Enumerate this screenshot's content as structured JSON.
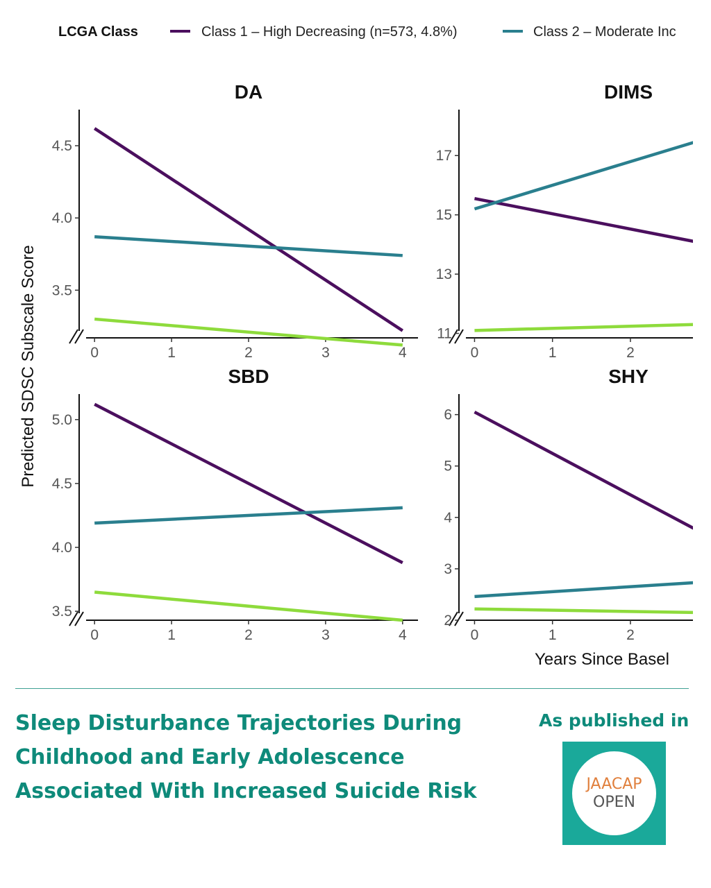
{
  "legend": {
    "title": "LCGA Class",
    "items": [
      {
        "label": "Class 1 – High Decreasing (n=573, 4.8%)",
        "color": "#4b0f5e"
      },
      {
        "label": "Class 2 – Moderate Inc",
        "color": "#2a7f8e"
      }
    ]
  },
  "y_axis_label": "Predicted SDSC Subscale Score",
  "x_axis_label": "Years Since Basel",
  "headline": {
    "line1": "Sleep Disturbance Trajectories During",
    "line2": "Childhood and Early Adolescence",
    "line3": "Associated With Increased Suicide Risk"
  },
  "published_label": "As published in",
  "logo": {
    "top": "JAACAP",
    "bottom": "OPEN",
    "bg": "#1aa99a"
  },
  "chart_data": [
    {
      "type": "line",
      "title": "DA",
      "x_ticks": [
        0,
        1,
        2,
        3,
        4
      ],
      "y_ticks": [
        3.5,
        4.0,
        4.5
      ],
      "xlim": [
        -0.2,
        4.2
      ],
      "ylim": [
        3.17,
        4.75
      ],
      "series": [
        {
          "name": "Class 1 – High Decreasing (n=573, 4.8%)",
          "color": "#4b0f5e",
          "x": [
            0,
            4
          ],
          "y": [
            4.62,
            3.22
          ]
        },
        {
          "name": "Class 2 – Moderate Inc",
          "color": "#2a7f8e",
          "x": [
            0,
            4
          ],
          "y": [
            3.87,
            3.74
          ]
        },
        {
          "color": "#8edb3c",
          "x": [
            0,
            4
          ],
          "y": [
            3.3,
            3.12
          ]
        }
      ]
    },
    {
      "type": "line",
      "title": "DIMS",
      "x_ticks": [
        0,
        1,
        2
      ],
      "y_ticks": [
        11,
        13,
        15,
        17
      ],
      "xlim": [
        -0.2,
        2.82
      ],
      "ylim": [
        10.85,
        18.55
      ],
      "series": [
        {
          "name": "Class 1 – High Decreasing (n=573, 4.8%)",
          "color": "#4b0f5e",
          "x": [
            0,
            2.82
          ],
          "y": [
            15.55,
            14.1
          ]
        },
        {
          "name": "Class 2 – Moderate Inc",
          "color": "#2a7f8e",
          "x": [
            0,
            2.82
          ],
          "y": [
            15.2,
            17.45
          ]
        },
        {
          "color": "#8edb3c",
          "x": [
            0,
            2.82
          ],
          "y": [
            11.1,
            11.3
          ]
        }
      ]
    },
    {
      "type": "line",
      "title": "SBD",
      "x_ticks": [
        0,
        1,
        2,
        3,
        4
      ],
      "y_ticks": [
        3.5,
        4.0,
        4.5,
        5.0
      ],
      "xlim": [
        -0.2,
        4.2
      ],
      "ylim": [
        3.43,
        5.2
      ],
      "series": [
        {
          "name": "Class 1 – High Decreasing (n=573, 4.8%)",
          "color": "#4b0f5e",
          "x": [
            0,
            4
          ],
          "y": [
            5.12,
            3.88
          ]
        },
        {
          "name": "Class 2 – Moderate Inc",
          "color": "#2a7f8e",
          "x": [
            0,
            4
          ],
          "y": [
            4.19,
            4.31
          ]
        },
        {
          "color": "#8edb3c",
          "x": [
            0,
            4
          ],
          "y": [
            3.65,
            3.43
          ]
        }
      ]
    },
    {
      "type": "line",
      "title": "SHY",
      "x_ticks": [
        0,
        1,
        2
      ],
      "y_ticks": [
        2,
        3,
        4,
        5,
        6
      ],
      "xlim": [
        -0.2,
        2.82
      ],
      "ylim": [
        2.0,
        6.4
      ],
      "series": [
        {
          "name": "Class 1 – High Decreasing (n=573, 4.8%)",
          "color": "#4b0f5e",
          "x": [
            0,
            2.82
          ],
          "y": [
            6.05,
            3.78
          ]
        },
        {
          "name": "Class 2 – Moderate Inc",
          "color": "#2a7f8e",
          "x": [
            0,
            2.82
          ],
          "y": [
            2.46,
            2.73
          ]
        },
        {
          "color": "#8edb3c",
          "x": [
            0,
            2.82
          ],
          "y": [
            2.22,
            2.15
          ]
        }
      ]
    }
  ]
}
